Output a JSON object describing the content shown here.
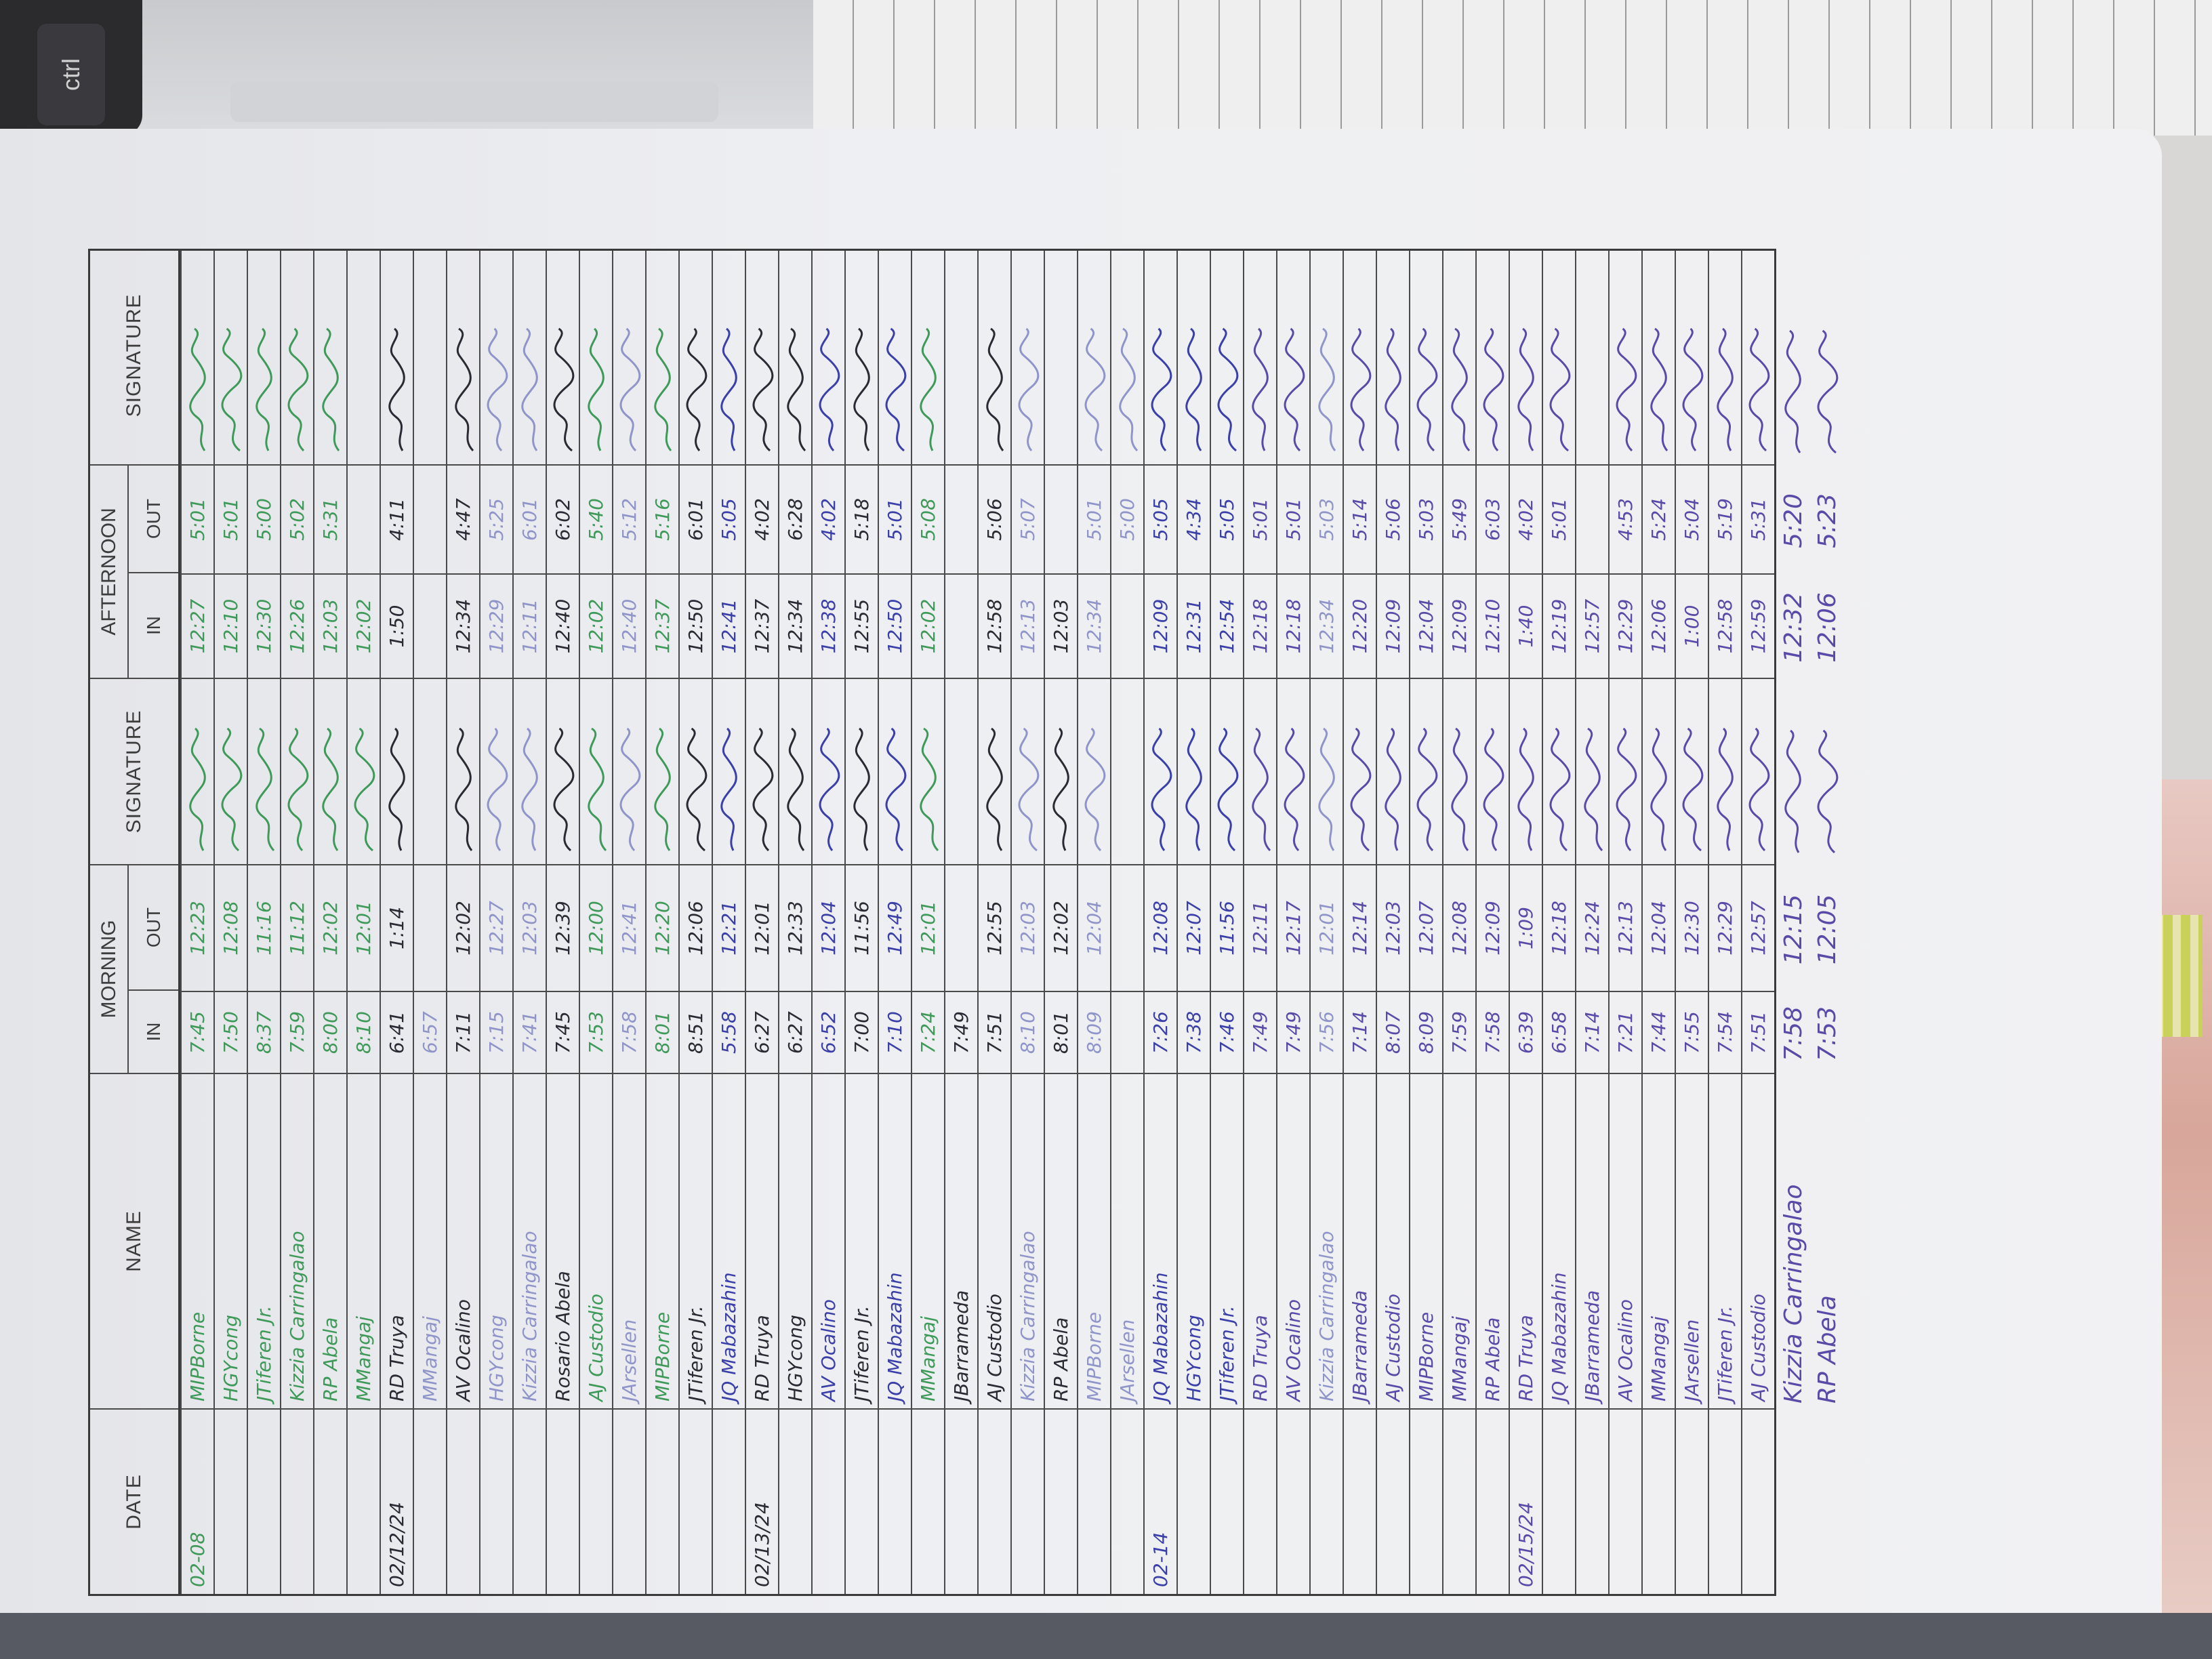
{
  "background": {
    "laptop_key_label": "ctrl"
  },
  "sheet": {
    "headers": {
      "date": "DATE",
      "name": "NAME",
      "morning": "MORNING",
      "afternoon": "AFTERNOON",
      "in": "IN",
      "out": "OUT",
      "signature": "SIGNATURE"
    },
    "ink_colors": {
      "green": "#3f9a5a",
      "blue": "#3b3fa8",
      "purple": "#5a4aa8",
      "black": "#2a2a35",
      "faded": "#8f95c9"
    },
    "rows": [
      {
        "date": "02-08",
        "name": "MIPBorne",
        "m_in": "7:45",
        "m_out": "12:23",
        "a_in": "12:27",
        "a_out": "5:01",
        "ink": "green"
      },
      {
        "date": "",
        "name": "HGYcong",
        "m_in": "7:50",
        "m_out": "12:08",
        "a_in": "12:10",
        "a_out": "5:01",
        "ink": "green"
      },
      {
        "date": "",
        "name": "JTiferen Jr.",
        "m_in": "8:37",
        "m_out": "11:16",
        "a_in": "12:30",
        "a_out": "5:00",
        "ink": "green"
      },
      {
        "date": "",
        "name": "Kizzia Carringalao",
        "m_in": "7:59",
        "m_out": "11:12",
        "a_in": "12:26",
        "a_out": "5:02",
        "ink": "green"
      },
      {
        "date": "",
        "name": "RP Abela",
        "m_in": "8:00",
        "m_out": "12:02",
        "a_in": "12:03",
        "a_out": "5:31",
        "ink": "green"
      },
      {
        "date": "",
        "name": "MMangaj",
        "m_in": "8:10",
        "m_out": "12:01",
        "a_in": "12:02",
        "a_out": "",
        "ink": "green"
      },
      {
        "date": "02/12/24",
        "name": "RD Truya",
        "m_in": "6:41",
        "m_out": "1:14",
        "a_in": "1:50",
        "a_out": "4:11",
        "ink": "black"
      },
      {
        "date": "",
        "name": "MMangaj",
        "m_in": "6:57",
        "m_out": "",
        "a_in": "",
        "a_out": "",
        "ink": "faded"
      },
      {
        "date": "",
        "name": "AV Ocalino",
        "m_in": "7:11",
        "m_out": "12:02",
        "a_in": "12:34",
        "a_out": "4:47",
        "ink": "black"
      },
      {
        "date": "",
        "name": "HGYcong",
        "m_in": "7:15",
        "m_out": "12:27",
        "a_in": "12:29",
        "a_out": "5:25",
        "ink": "faded"
      },
      {
        "date": "",
        "name": "Kizzia Carringalao",
        "m_in": "7:41",
        "m_out": "12:03",
        "a_in": "12:11",
        "a_out": "6:01",
        "ink": "faded"
      },
      {
        "date": "",
        "name": "Rosario Abela",
        "m_in": "7:45",
        "m_out": "12:39",
        "a_in": "12:40",
        "a_out": "6:02",
        "ink": "black"
      },
      {
        "date": "",
        "name": "AJ Custodio",
        "m_in": "7:53",
        "m_out": "12:00",
        "a_in": "12:02",
        "a_out": "5:40",
        "ink": "green"
      },
      {
        "date": "",
        "name": "JArsellen",
        "m_in": "7:58",
        "m_out": "12:41",
        "a_in": "12:40",
        "a_out": "5:12",
        "ink": "faded"
      },
      {
        "date": "",
        "name": "MIPBorne",
        "m_in": "8:01",
        "m_out": "12:20",
        "a_in": "12:37",
        "a_out": "5:16",
        "ink": "green"
      },
      {
        "date": "",
        "name": "JTiferen Jr.",
        "m_in": "8:51",
        "m_out": "12:06",
        "a_in": "12:50",
        "a_out": "6:01",
        "ink": "black"
      },
      {
        "date": "",
        "name": "JQ Mabazahin",
        "m_in": "5:58",
        "m_out": "12:21",
        "a_in": "12:41",
        "a_out": "5:05",
        "ink": "blue"
      },
      {
        "date": "02/13/24",
        "name": "RD Truya",
        "m_in": "6:27",
        "m_out": "12:01",
        "a_in": "12:37",
        "a_out": "4:02",
        "ink": "black"
      },
      {
        "date": "",
        "name": "HGYcong",
        "m_in": "6:27",
        "m_out": "12:33",
        "a_in": "12:34",
        "a_out": "6:28",
        "ink": "black"
      },
      {
        "date": "",
        "name": "AV Ocalino",
        "m_in": "6:52",
        "m_out": "12:04",
        "a_in": "12:38",
        "a_out": "4:02",
        "ink": "blue"
      },
      {
        "date": "",
        "name": "JTiferen Jr.",
        "m_in": "7:00",
        "m_out": "11:56",
        "a_in": "12:55",
        "a_out": "5:18",
        "ink": "black"
      },
      {
        "date": "",
        "name": "JQ Mabazahin",
        "m_in": "7:10",
        "m_out": "12:49",
        "a_in": "12:50",
        "a_out": "5:01",
        "ink": "blue"
      },
      {
        "date": "",
        "name": "MMangaj",
        "m_in": "7:24",
        "m_out": "12:01",
        "a_in": "12:02",
        "a_out": "5:08",
        "ink": "green"
      },
      {
        "date": "",
        "name": "JBarrameda",
        "m_in": "7:49",
        "m_out": "",
        "a_in": "",
        "a_out": "",
        "ink": "black"
      },
      {
        "date": "",
        "name": "AJ Custodio",
        "m_in": "7:51",
        "m_out": "12:55",
        "a_in": "12:58",
        "a_out": "5:06",
        "ink": "black"
      },
      {
        "date": "",
        "name": "Kizzia Carringalao",
        "m_in": "8:10",
        "m_out": "12:03",
        "a_in": "12:13",
        "a_out": "5:07",
        "ink": "faded"
      },
      {
        "date": "",
        "name": "RP Abela",
        "m_in": "8:01",
        "m_out": "12:02",
        "a_in": "12:03",
        "a_out": "",
        "ink": "black"
      },
      {
        "date": "",
        "name": "MIPBorne",
        "m_in": "8:09",
        "m_out": "12:04",
        "a_in": "12:34",
        "a_out": "5:01",
        "ink": "faded"
      },
      {
        "date": "",
        "name": "JArsellen",
        "m_in": "",
        "m_out": "",
        "a_in": "",
        "a_out": "5:00",
        "ink": "faded"
      },
      {
        "date": "02-14",
        "name": "JQ Mabazahin",
        "m_in": "7:26",
        "m_out": "12:08",
        "a_in": "12:09",
        "a_out": "5:05",
        "ink": "blue"
      },
      {
        "date": "",
        "name": "HGYcong",
        "m_in": "7:38",
        "m_out": "12:07",
        "a_in": "12:31",
        "a_out": "4:34",
        "ink": "blue"
      },
      {
        "date": "",
        "name": "JTiferen Jr.",
        "m_in": "7:46",
        "m_out": "11:56",
        "a_in": "12:54",
        "a_out": "5:05",
        "ink": "blue"
      },
      {
        "date": "",
        "name": "RD Truya",
        "m_in": "7:49",
        "m_out": "12:11",
        "a_in": "12:18",
        "a_out": "5:01",
        "ink": "purple"
      },
      {
        "date": "",
        "name": "AV Ocalino",
        "m_in": "7:49",
        "m_out": "12:17",
        "a_in": "12:18",
        "a_out": "5:01",
        "ink": "purple"
      },
      {
        "date": "",
        "name": "Kizzia Carringalao",
        "m_in": "7:56",
        "m_out": "12:01",
        "a_in": "12:34",
        "a_out": "5:03",
        "ink": "faded"
      },
      {
        "date": "",
        "name": "JBarrameda",
        "m_in": "7:14",
        "m_out": "12:14",
        "a_in": "12:20",
        "a_out": "5:14",
        "ink": "purple"
      },
      {
        "date": "",
        "name": "AJ Custodio",
        "m_in": "8:07",
        "m_out": "12:03",
        "a_in": "12:09",
        "a_out": "5:06",
        "ink": "purple"
      },
      {
        "date": "",
        "name": "MIPBorne",
        "m_in": "8:09",
        "m_out": "12:07",
        "a_in": "12:04",
        "a_out": "5:03",
        "ink": "purple"
      },
      {
        "date": "",
        "name": "MMangaj",
        "m_in": "7:59",
        "m_out": "12:08",
        "a_in": "12:09",
        "a_out": "5:49",
        "ink": "purple"
      },
      {
        "date": "",
        "name": "RP Abela",
        "m_in": "7:58",
        "m_out": "12:09",
        "a_in": "12:10",
        "a_out": "6:03",
        "ink": "purple"
      },
      {
        "date": "02/15/24",
        "name": "RD Truya",
        "m_in": "6:39",
        "m_out": "1:09",
        "a_in": "1:40",
        "a_out": "4:02",
        "ink": "purple"
      },
      {
        "date": "",
        "name": "JQ Mabazahin",
        "m_in": "6:58",
        "m_out": "12:18",
        "a_in": "12:19",
        "a_out": "5:01",
        "ink": "purple"
      },
      {
        "date": "",
        "name": "JBarrameda",
        "m_in": "7:14",
        "m_out": "12:24",
        "a_in": "12:57",
        "a_out": "",
        "ink": "purple"
      },
      {
        "date": "",
        "name": "AV Ocalino",
        "m_in": "7:21",
        "m_out": "12:13",
        "a_in": "12:29",
        "a_out": "4:53",
        "ink": "purple"
      },
      {
        "date": "",
        "name": "MMangaj",
        "m_in": "7:44",
        "m_out": "12:04",
        "a_in": "12:06",
        "a_out": "5:24",
        "ink": "purple"
      },
      {
        "date": "",
        "name": "JArsellen",
        "m_in": "7:55",
        "m_out": "12:30",
        "a_in": "1:00",
        "a_out": "5:04",
        "ink": "purple"
      },
      {
        "date": "",
        "name": "JTiferen Jr.",
        "m_in": "7:54",
        "m_out": "12:29",
        "a_in": "12:58",
        "a_out": "5:19",
        "ink": "purple"
      },
      {
        "date": "",
        "name": "AJ Custodio",
        "m_in": "7:51",
        "m_out": "12:57",
        "a_in": "12:59",
        "a_out": "5:31",
        "ink": "purple"
      }
    ],
    "loose_rows": [
      {
        "name": "Kizzia Carringalao",
        "m_in": "7:58",
        "m_out": "12:15",
        "a_in": "12:32",
        "a_out": "5:20",
        "ink": "purple"
      },
      {
        "name": "RP Abela",
        "m_in": "7:53",
        "m_out": "12:05",
        "a_in": "12:06",
        "a_out": "5:23",
        "ink": "purple"
      }
    ]
  }
}
